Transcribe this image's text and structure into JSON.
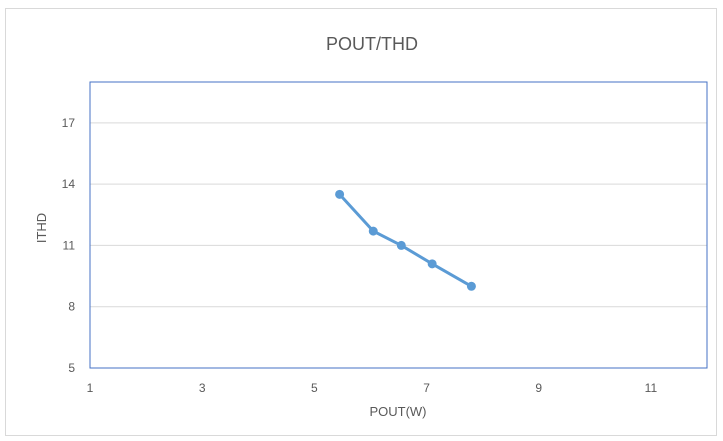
{
  "chart_data": {
    "type": "line",
    "title": "POUT/THD",
    "xlabel": "POUT(W)",
    "ylabel": "ITHD",
    "xlim": [
      1,
      12
    ],
    "ylim": [
      5,
      19
    ],
    "x_ticks": [
      1,
      3,
      5,
      7,
      9,
      11
    ],
    "y_ticks": [
      5,
      8,
      11,
      14,
      17
    ],
    "grid": "horizontal",
    "legend": "none",
    "series": [
      {
        "color": "#5b9bd5",
        "points": [
          {
            "x": 5.45,
            "y": 13.5
          },
          {
            "x": 6.05,
            "y": 11.7
          },
          {
            "x": 6.55,
            "y": 11.0
          },
          {
            "x": 7.1,
            "y": 10.1
          },
          {
            "x": 7.8,
            "y": 9.0
          }
        ]
      }
    ]
  },
  "colors": {
    "plot_border": "#4472c4",
    "gridline": "#d9d9d9",
    "text": "#595959"
  }
}
